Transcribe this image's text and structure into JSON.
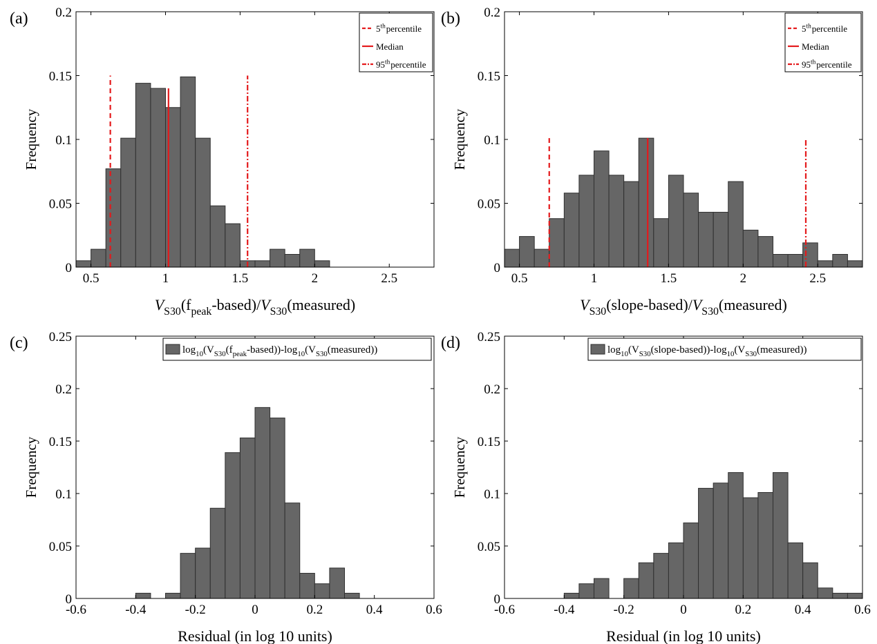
{
  "colors": {
    "bar": "#666666",
    "bar_edge": "#2f2f2f",
    "ref": "#e41a1c",
    "axis": "#000000"
  },
  "chart_data": [
    {
      "panel": "a",
      "panel_label": "(a)",
      "type": "bar",
      "xlabel_parts": [
        "V",
        "S30",
        "(f",
        "peak",
        "-based)/",
        "V",
        "S30",
        "(measured)"
      ],
      "ylabel": "Frequency",
      "xlim": [
        0.4,
        2.8
      ],
      "ylim": [
        0,
        0.2
      ],
      "xticks": [
        0.5,
        1,
        1.5,
        2,
        2.5
      ],
      "xtick_labels": [
        "0.5",
        "1",
        "1.5",
        "2",
        "2.5"
      ],
      "yticks": [
        0,
        0.05,
        0.1,
        0.15,
        0.2
      ],
      "ytick_labels": [
        "0",
        "0.05",
        "0.1",
        "0.15",
        "0.2"
      ],
      "bin_edges": [
        0.4,
        0.5,
        0.6,
        0.7,
        0.8,
        0.9,
        1.0,
        1.1,
        1.2,
        1.3,
        1.4,
        1.5,
        1.6,
        1.7,
        1.8,
        1.9,
        2.0,
        2.1
      ],
      "values": [
        0.005,
        0.014,
        0.077,
        0.101,
        0.144,
        0.14,
        0.125,
        0.149,
        0.101,
        0.048,
        0.034,
        0.005,
        0.005,
        0.014,
        0.01,
        0.014,
        0.005
      ],
      "ref_lines": [
        {
          "name": "5th percentile",
          "x": 0.63,
          "y_top": 0.15,
          "style": "dashed"
        },
        {
          "name": "Median",
          "x": 1.02,
          "y_top": 0.14,
          "style": "solid"
        },
        {
          "name": "95th percentile",
          "x": 1.55,
          "y_top": 0.15,
          "style": "dashdot"
        }
      ],
      "legend": {
        "position": "top-right",
        "entries": [
          {
            "style": "dashed",
            "parts": [
              "5",
              "th",
              "percentile"
            ]
          },
          {
            "style": "solid",
            "parts": [
              "Median"
            ]
          },
          {
            "style": "dashdot",
            "parts": [
              "95",
              "th",
              "percentile"
            ]
          }
        ]
      }
    },
    {
      "panel": "b",
      "panel_label": "(b)",
      "type": "bar",
      "xlabel_parts": [
        "V",
        "S30",
        "(slope-based)/",
        "V",
        "S30",
        "(measured)"
      ],
      "ylabel": "Frequency",
      "xlim": [
        0.4,
        2.8
      ],
      "ylim": [
        0,
        0.2
      ],
      "xticks": [
        0.5,
        1,
        1.5,
        2,
        2.5
      ],
      "xtick_labels": [
        "0.5",
        "1",
        "1.5",
        "2",
        "2.5"
      ],
      "yticks": [
        0,
        0.05,
        0.1,
        0.15,
        0.2
      ],
      "ytick_labels": [
        "0",
        "0.05",
        "0.1",
        "0.15",
        "0.2"
      ],
      "bin_edges": [
        0.4,
        0.5,
        0.6,
        0.7,
        0.8,
        0.9,
        1.0,
        1.1,
        1.2,
        1.3,
        1.4,
        1.5,
        1.6,
        1.7,
        1.8,
        1.9,
        2.0,
        2.1,
        2.2,
        2.3,
        2.4,
        2.5,
        2.6,
        2.7,
        2.8
      ],
      "values": [
        0.014,
        0.024,
        0.014,
        0.038,
        0.058,
        0.072,
        0.091,
        0.072,
        0.067,
        0.101,
        0.038,
        0.072,
        0.058,
        0.043,
        0.043,
        0.067,
        0.029,
        0.024,
        0.01,
        0.01,
        0.019,
        0.005,
        0.01,
        0.005
      ],
      "ref_lines": [
        {
          "name": "5th percentile",
          "x": 0.7,
          "y_top": 0.101,
          "style": "dashed"
        },
        {
          "name": "Median",
          "x": 1.36,
          "y_top": 0.101,
          "style": "solid"
        },
        {
          "name": "95th percentile",
          "x": 2.42,
          "y_top": 0.101,
          "style": "dashdot"
        }
      ],
      "legend": {
        "position": "top-right",
        "entries": [
          {
            "style": "dashed",
            "parts": [
              "5",
              "th",
              "percentile"
            ]
          },
          {
            "style": "solid",
            "parts": [
              "Median"
            ]
          },
          {
            "style": "dashdot",
            "parts": [
              "95",
              "th",
              "percentile"
            ]
          }
        ]
      }
    },
    {
      "panel": "c",
      "panel_label": "(c)",
      "type": "bar",
      "xlabel_parts": [
        "Residual (in log 10 units)"
      ],
      "ylabel": "Frequency",
      "xlim": [
        -0.6,
        0.6
      ],
      "ylim": [
        0,
        0.25
      ],
      "xticks": [
        -0.6,
        -0.4,
        -0.2,
        0,
        0.2,
        0.4,
        0.6
      ],
      "xtick_labels": [
        "-0.6",
        "-0.4",
        "-0.2",
        "0",
        "0.2",
        "0.4",
        "0.6"
      ],
      "yticks": [
        0,
        0.05,
        0.1,
        0.15,
        0.2,
        0.25
      ],
      "ytick_labels": [
        "0",
        "0.05",
        "0.1",
        "0.15",
        "0.2",
        "0.25"
      ],
      "bin_edges": [
        -0.4,
        -0.35,
        -0.3,
        -0.25,
        -0.2,
        -0.15,
        -0.1,
        -0.05,
        0.0,
        0.05,
        0.1,
        0.15,
        0.2,
        0.25,
        0.3,
        0.35
      ],
      "values": [
        0.005,
        0,
        0.005,
        0.043,
        0.048,
        0.086,
        0.139,
        0.153,
        0.182,
        0.172,
        0.091,
        0.024,
        0.014,
        0.029,
        0.005
      ],
      "ref_lines": [],
      "legend": {
        "position": "top-right",
        "entries": [
          {
            "style": "box",
            "parts": [
              "log",
              "10",
              "(V",
              "S30",
              "(f",
              "peak",
              "-based))-log",
              "10",
              "(V",
              "S30",
              "(measured))"
            ]
          }
        ]
      }
    },
    {
      "panel": "d",
      "panel_label": "(d)",
      "type": "bar",
      "xlabel_parts": [
        "Residual (in log 10 units)"
      ],
      "ylabel": "Frequency",
      "xlim": [
        -0.6,
        0.6
      ],
      "ylim": [
        0,
        0.25
      ],
      "xticks": [
        -0.6,
        -0.4,
        -0.2,
        0,
        0.2,
        0.4,
        0.6
      ],
      "xtick_labels": [
        "-0.6",
        "-0.4",
        "-0.2",
        "0",
        "0.2",
        "0.4",
        "0.6"
      ],
      "yticks": [
        0,
        0.05,
        0.1,
        0.15,
        0.2,
        0.25
      ],
      "ytick_labels": [
        "0",
        "0.05",
        "0.1",
        "0.15",
        "0.2",
        "0.25"
      ],
      "bin_edges": [
        -0.4,
        -0.35,
        -0.3,
        -0.25,
        -0.2,
        -0.15,
        -0.1,
        -0.05,
        0.0,
        0.05,
        0.1,
        0.15,
        0.2,
        0.25,
        0.3,
        0.35,
        0.4,
        0.45,
        0.5,
        0.55,
        0.6
      ],
      "values": [
        0.005,
        0.014,
        0.019,
        0,
        0.019,
        0.034,
        0.043,
        0.053,
        0.072,
        0.105,
        0.11,
        0.12,
        0.096,
        0.101,
        0.12,
        0.053,
        0.034,
        0.01,
        0.005,
        0.005
      ],
      "ref_lines": [],
      "legend": {
        "position": "top-right",
        "entries": [
          {
            "style": "box",
            "parts": [
              "log",
              "10",
              "(V",
              "S30",
              "(slope-based))-log",
              "10",
              "(V",
              "S30",
              "(measured))"
            ]
          }
        ]
      }
    }
  ]
}
